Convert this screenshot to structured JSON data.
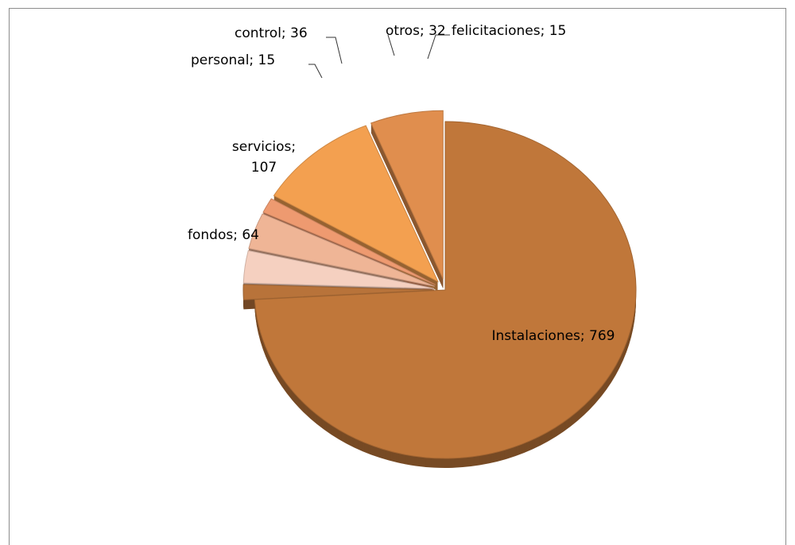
{
  "chart_data": {
    "type": "pie",
    "style": "3d-exploded",
    "slices": [
      {
        "label": "Instalaciones",
        "value": 769,
        "color": "#C0773A"
      },
      {
        "label": "felicitaciones",
        "value": 15,
        "color": "#B8733A"
      },
      {
        "label": "otros",
        "value": 32,
        "color": "#F5D0C0"
      },
      {
        "label": "control",
        "value": 36,
        "color": "#EFB596"
      },
      {
        "label": "personal",
        "value": 15,
        "color": "#EE9A70"
      },
      {
        "label": "servicios",
        "value": 107,
        "color": "#F3A050"
      },
      {
        "label": "fondos",
        "value": 64,
        "color": "#E08E4E"
      }
    ],
    "data_labels": [
      {
        "label_text": "Instalaciones; 769"
      },
      {
        "label_text": "felicitaciones; 15"
      },
      {
        "label_text": "otros; 32"
      },
      {
        "label_text": "control; 36"
      },
      {
        "label_text": "personal; 15"
      },
      {
        "label_lines": [
          "servicios;",
          "107"
        ]
      },
      {
        "label_text": "fondos; 64"
      }
    ]
  }
}
